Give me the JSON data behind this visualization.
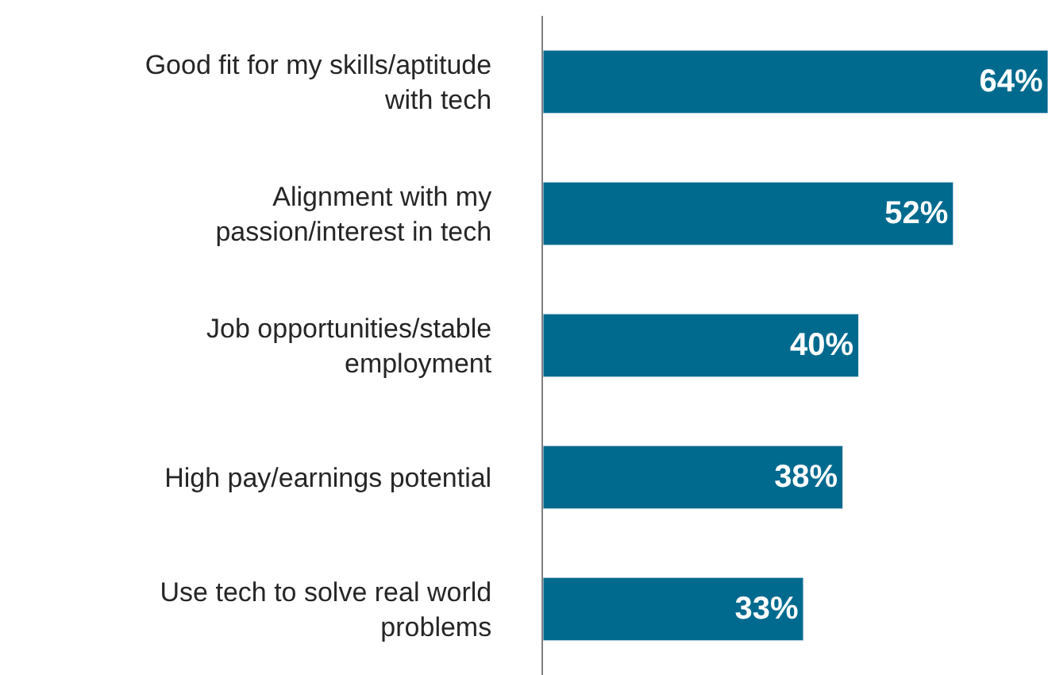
{
  "chart_data": {
    "type": "bar",
    "orientation": "horizontal",
    "categories": [
      "Good fit for my skills/aptitude\nwith tech",
      "Alignment with my\npassion/interest in tech",
      "Job opportunities/stable\nemployment",
      "High pay/earnings potential",
      "Use tech to solve real world\nproblems"
    ],
    "values": [
      64,
      52,
      40,
      38,
      33
    ],
    "value_labels": [
      "64%",
      "52%",
      "40%",
      "38%",
      "33%"
    ],
    "color": "#006a8e",
    "legend": false
  }
}
